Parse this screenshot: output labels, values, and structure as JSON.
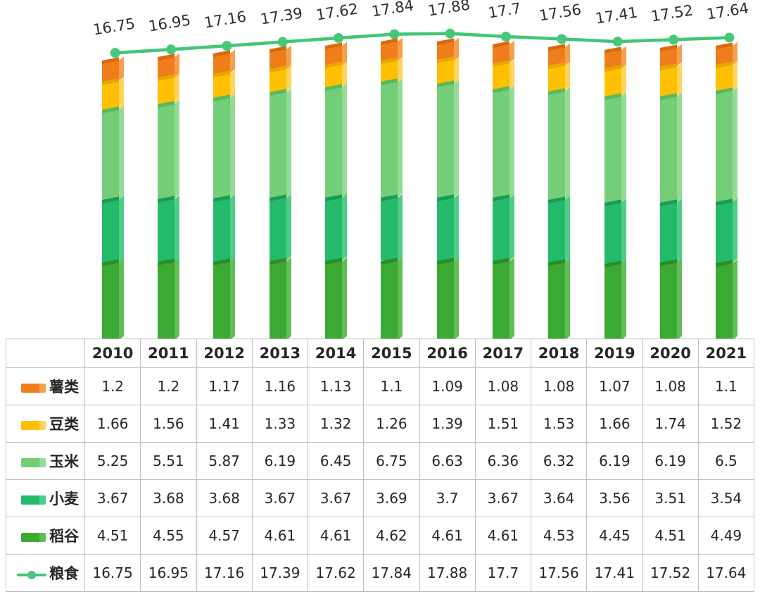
{
  "chart_data": {
    "type": "bar",
    "subtype": "3d-stacked-bars-with-total-line",
    "title": "",
    "categories": [
      "2010",
      "2011",
      "2012",
      "2013",
      "2014",
      "2015",
      "2016",
      "2017",
      "2018",
      "2019",
      "2020",
      "2021"
    ],
    "series": [
      {
        "key": "tubers",
        "label": "薯类",
        "chart_type": "bar",
        "color": "#EF7D1B",
        "side_color": "#F5A04C",
        "cap_color": "#D8690D",
        "values": [
          1.2,
          1.2,
          1.17,
          1.16,
          1.13,
          1.1,
          1.09,
          1.08,
          1.08,
          1.07,
          1.08,
          1.1
        ]
      },
      {
        "key": "beans",
        "label": "豆类",
        "chart_type": "bar",
        "color": "#FFC004",
        "side_color": "#FFD45C",
        "cap_color": "#E5A800",
        "values": [
          1.66,
          1.56,
          1.41,
          1.33,
          1.32,
          1.26,
          1.39,
          1.51,
          1.53,
          1.66,
          1.74,
          1.52
        ]
      },
      {
        "key": "corn",
        "label": "玉米",
        "chart_type": "bar",
        "color": "#73CE77",
        "side_color": "#93DC95",
        "cap_color": "#58B95E",
        "values": [
          5.25,
          5.51,
          5.87,
          6.19,
          6.45,
          6.75,
          6.63,
          6.36,
          6.32,
          6.19,
          6.19,
          6.5
        ]
      },
      {
        "key": "wheat",
        "label": "小麦",
        "chart_type": "bar",
        "color": "#23BB69",
        "side_color": "#4ECC8A",
        "cap_color": "#1B9B56",
        "values": [
          3.67,
          3.68,
          3.68,
          3.67,
          3.67,
          3.69,
          3.7,
          3.67,
          3.64,
          3.56,
          3.51,
          3.54
        ]
      },
      {
        "key": "rice",
        "label": "稻谷",
        "chart_type": "bar",
        "color": "#3AAA32",
        "side_color": "#60BE56",
        "cap_color": "#2E8C28",
        "values": [
          4.51,
          4.55,
          4.57,
          4.61,
          4.61,
          4.62,
          4.61,
          4.61,
          4.53,
          4.45,
          4.51,
          4.49
        ]
      },
      {
        "key": "grain",
        "label": "粮食",
        "chart_type": "line",
        "color": "#40C675",
        "marker_color": "#45C878",
        "marker": "circle",
        "values": [
          16.75,
          16.95,
          17.16,
          17.39,
          17.62,
          17.84,
          17.88,
          17.7,
          17.56,
          17.41,
          17.52,
          17.64
        ]
      }
    ],
    "stack_order_bottom_to_top": [
      "rice",
      "wheat",
      "corn",
      "beans",
      "tubers"
    ],
    "value_labels": {
      "series": "grain",
      "position": "above-line-markers",
      "rotation_deg": -9
    },
    "legend_position": "table-first-column",
    "grid": false,
    "axes_hidden": true
  },
  "table": {
    "corner_label": ""
  },
  "colors": {
    "border": "#BFBFBF",
    "text": "#262626",
    "background": "#FFFFFF"
  }
}
